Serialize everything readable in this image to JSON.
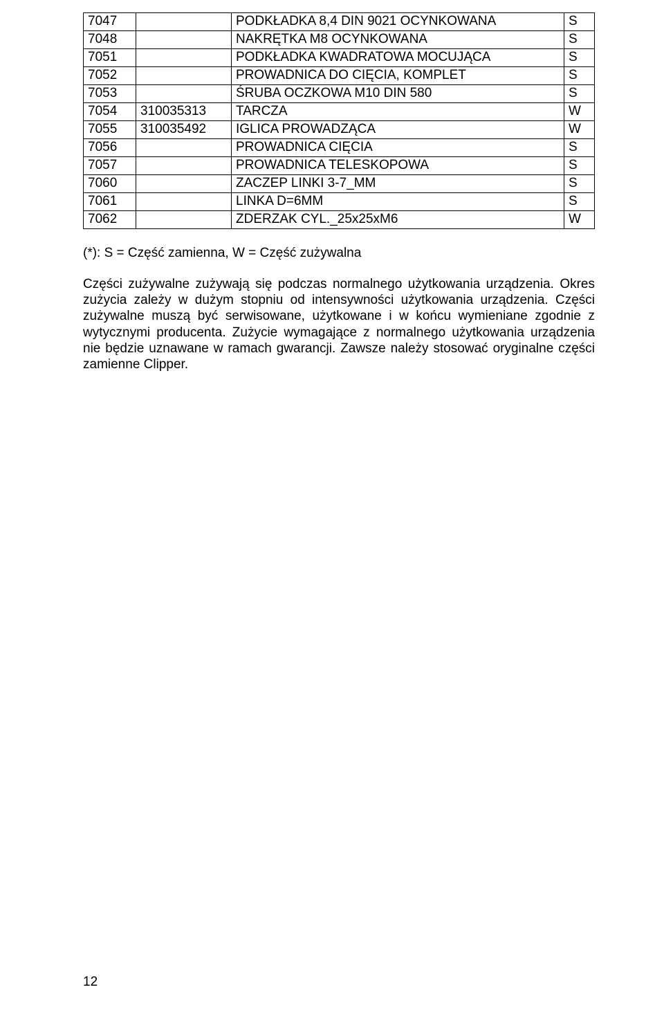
{
  "table": {
    "rows": [
      {
        "code": "7047",
        "pn": "",
        "desc": "PODKŁADKA 8,4 DIN 9021 OCYNKOWANA",
        "sw": "S"
      },
      {
        "code": "7048",
        "pn": "",
        "desc": "NAKRĘTKA M8 OCYNKOWANA",
        "sw": "S"
      },
      {
        "code": "7051",
        "pn": "",
        "desc": "PODKŁADKA KWADRATOWA MOCUJĄCA",
        "sw": "S"
      },
      {
        "code": "7052",
        "pn": "",
        "desc": "PROWADNICA DO CIĘCIA, KOMPLET",
        "sw": "S"
      },
      {
        "code": "7053",
        "pn": "",
        "desc": "ŚRUBA OCZKOWA M10 DIN 580",
        "sw": "S"
      },
      {
        "code": "7054",
        "pn": "310035313",
        "desc": "TARCZA",
        "sw": "W"
      },
      {
        "code": "7055",
        "pn": "310035492",
        "desc": "IGLICA PROWADZĄCA",
        "sw": "W"
      },
      {
        "code": "7056",
        "pn": "",
        "desc": "PROWADNICA CIĘCIA",
        "sw": "S"
      },
      {
        "code": "7057",
        "pn": "",
        "desc": "PROWADNICA TELESKOPOWA",
        "sw": "S"
      },
      {
        "code": "7060",
        "pn": "",
        "desc": "ZACZEP LINKI 3-7_MM",
        "sw": "S"
      },
      {
        "code": "7061",
        "pn": "",
        "desc": "LINKA D=6MM",
        "sw": "S"
      },
      {
        "code": "7062",
        "pn": "",
        "desc": "ZDERZAK CYL._25x25xM6",
        "sw": "W"
      }
    ]
  },
  "note": "(*): S = Część zamienna, W = Część zużywalna",
  "paragraph": "Części zużywalne zużywają się podczas normalnego użytkowania urządzenia. Okres zużycia zależy w dużym stopniu od intensywności użytkowania urządzenia. Części zużywalne muszą być serwisowane, użytkowane i w końcu wymieniane zgodnie z wytycznymi producenta. Zużycie wymagające z normalnego użytkowania urządzenia nie będzie uznawane w ramach gwarancji. Zawsze należy stosować oryginalne części zamienne Clipper.",
  "page_number": "12"
}
